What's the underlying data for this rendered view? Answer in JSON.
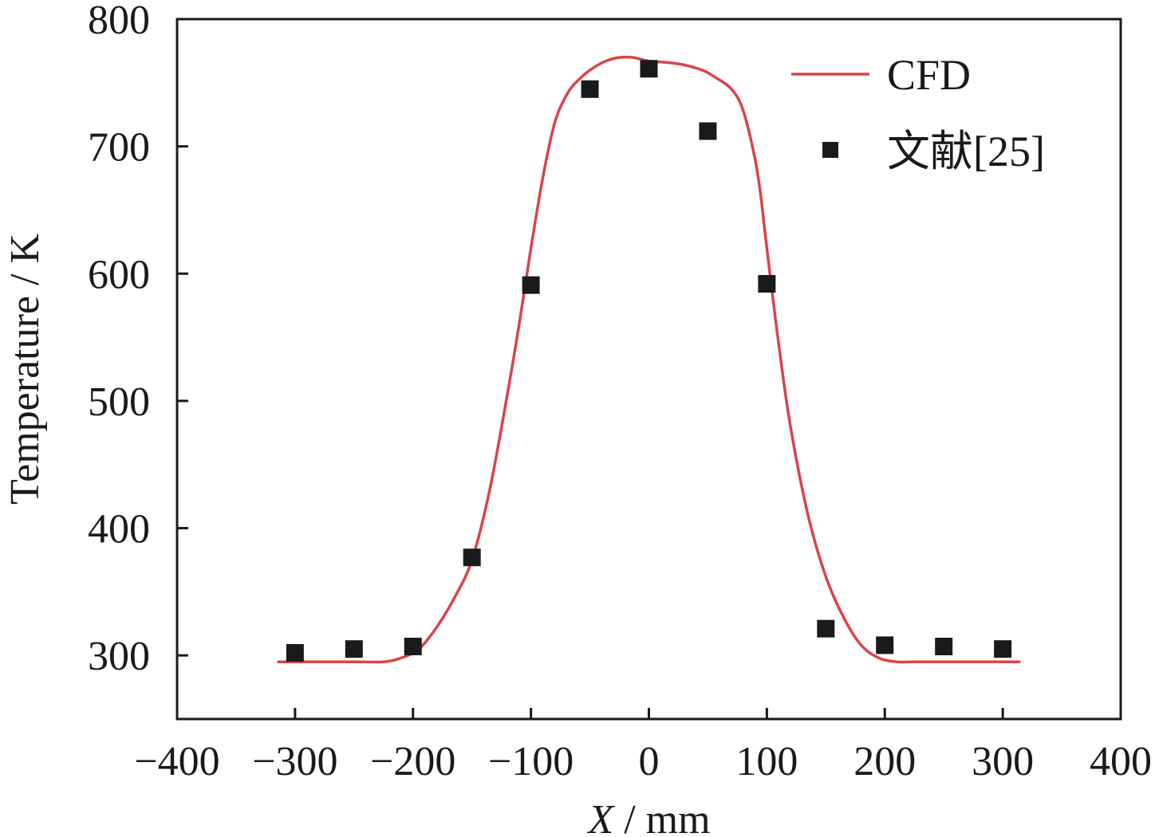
{
  "chart_data": {
    "type": "line",
    "xlabel_italic": "X",
    "xlabel_unit": " / mm",
    "ylabel": "Temperature / K",
    "xlim": [
      -400,
      400
    ],
    "ylim": [
      250,
      800
    ],
    "xticks": [
      -400,
      -300,
      -200,
      -100,
      0,
      100,
      200,
      300,
      400
    ],
    "xtick_labels": [
      "−400",
      "−300",
      "−200",
      "−100",
      "0",
      "100",
      "200",
      "300",
      "400"
    ],
    "yticks": [
      300,
      400,
      500,
      600,
      700,
      800
    ],
    "ytick_labels": [
      "300",
      "400",
      "500",
      "600",
      "700",
      "800"
    ],
    "grid": false,
    "legend_position": "top-right",
    "series": [
      {
        "name": "CFD",
        "kind": "line",
        "color": "#d9434a",
        "x": [
          -315,
          -280,
          -250,
          -225,
          -210,
          -195,
          -180,
          -165,
          -150,
          -135,
          -120,
          -110,
          -100,
          -90,
          -80,
          -70,
          -60,
          -45,
          -30,
          -15,
          0,
          15,
          30,
          45,
          55,
          70,
          80,
          90,
          95,
          100,
          110,
          120,
          135,
          150,
          165,
          180,
          195,
          210,
          225,
          250,
          280,
          315
        ],
        "y": [
          295,
          295,
          295,
          295,
          298,
          305,
          322,
          345,
          375,
          430,
          505,
          560,
          620,
          675,
          718,
          740,
          752,
          763,
          769,
          770,
          767,
          766,
          764,
          760,
          755,
          745,
          728,
          690,
          660,
          620,
          545,
          480,
          410,
          362,
          330,
          308,
          298,
          295,
          295,
          295,
          295,
          295
        ]
      },
      {
        "name": "文献[25]",
        "kind": "scatter",
        "color": "#1a1a1a",
        "x": [
          -300,
          -250,
          -200,
          -150,
          -100,
          -50,
          0,
          50,
          100,
          150,
          200,
          250,
          300
        ],
        "y": [
          302,
          305,
          307,
          377,
          591,
          745,
          761,
          712,
          592,
          321,
          308,
          307,
          305
        ]
      }
    ]
  }
}
